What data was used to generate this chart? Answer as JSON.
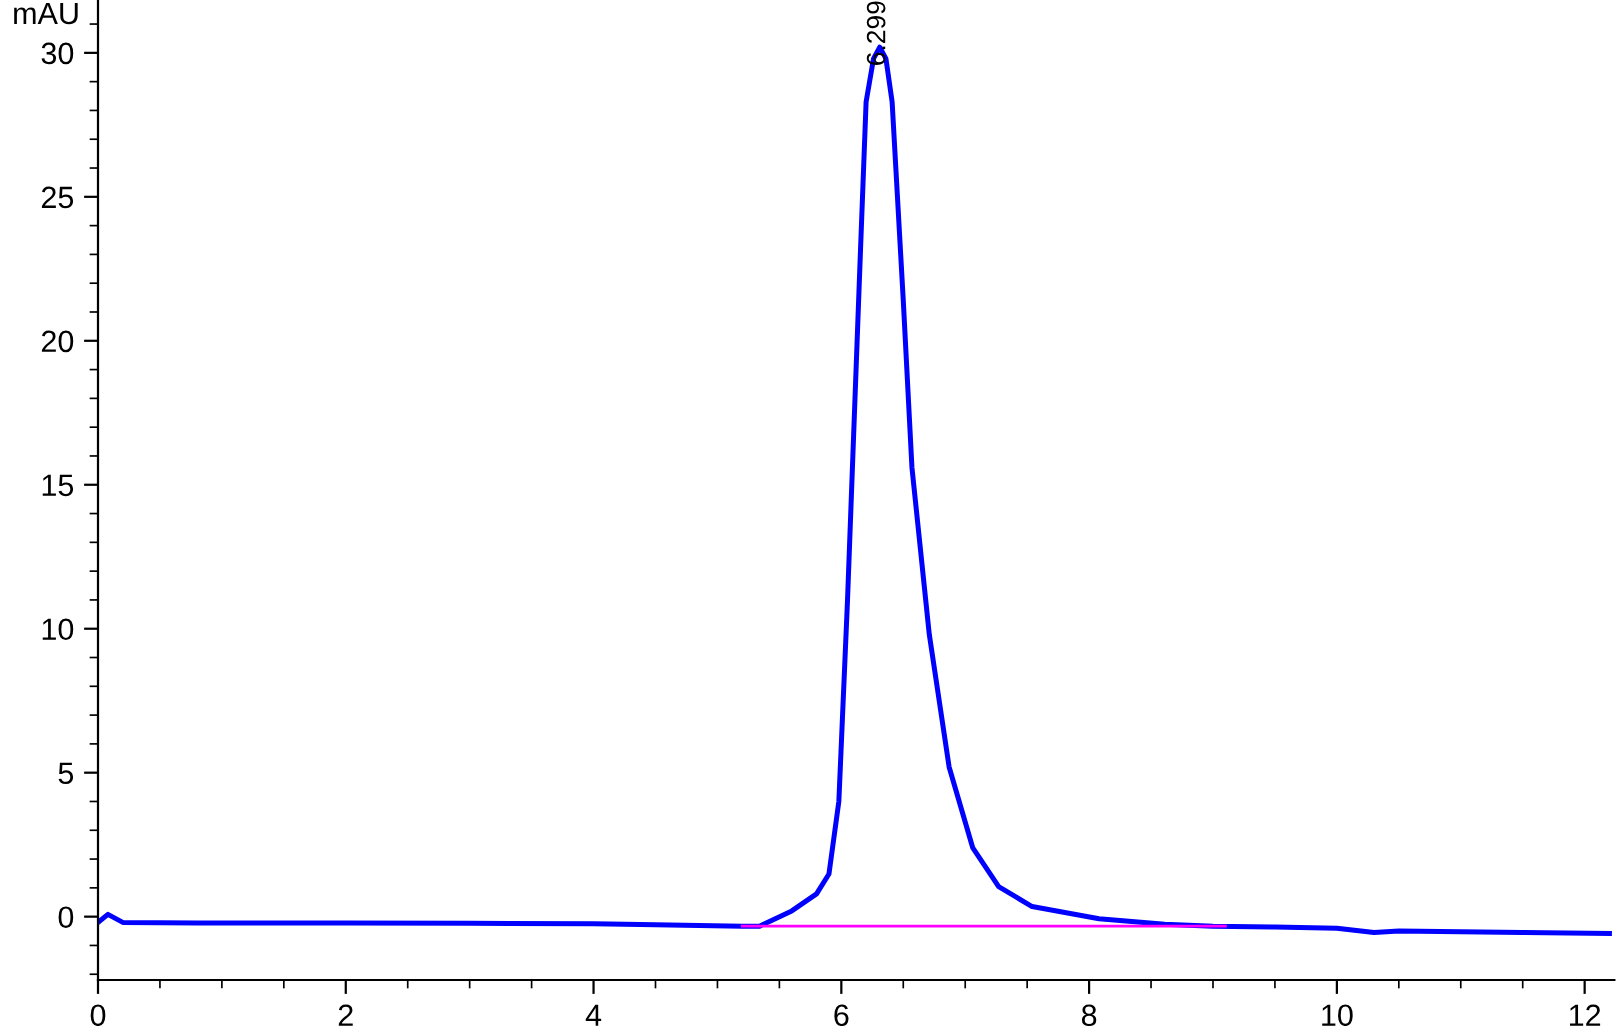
{
  "chart_data": {
    "type": "line",
    "ylabel": "mAU",
    "series": [
      {
        "color": "#0000ff",
        "x": [
          0,
          0.08,
          0.2,
          0.8,
          2,
          3,
          4,
          4.5,
          5.2,
          5.34,
          5.6,
          5.8,
          5.9,
          5.98,
          6.05,
          6.15,
          6.2,
          6.26,
          6.31,
          6.36,
          6.41,
          6.5,
          6.57,
          6.71,
          6.87,
          7.06,
          7.27,
          7.54,
          8.08,
          8.61,
          9,
          9.5,
          10,
          10.3,
          10.5,
          11,
          11.5,
          12.2
        ],
        "values": [
          -0.2,
          0.08,
          -0.2,
          -0.22,
          -0.22,
          -0.23,
          -0.25,
          -0.28,
          -0.33,
          -0.33,
          0.2,
          0.79,
          1.48,
          4.0,
          11.0,
          22.6,
          28.3,
          29.8,
          30.2,
          29.8,
          28.3,
          21.4,
          15.6,
          9.8,
          5.2,
          2.4,
          1.04,
          0.35,
          -0.07,
          -0.26,
          -0.33,
          -0.36,
          -0.4,
          -0.55,
          -0.5,
          -0.52,
          -0.55,
          -0.58
        ]
      },
      {
        "color": "#ff00ff",
        "x": [
          5.2,
          9.1
        ],
        "values": [
          -0.33,
          -0.33
        ]
      }
    ],
    "annotations": [
      {
        "text": "6.299",
        "x": 6.299,
        "y": 30.2
      }
    ],
    "xlim": [
      0,
      12.24
    ],
    "ylim": [
      -2.2,
      31.8
    ],
    "xticks": [
      0,
      2,
      4,
      6,
      8,
      10,
      12
    ],
    "yticks": [
      0,
      5,
      10,
      15,
      20,
      25,
      30
    ],
    "grid": false,
    "legend": false,
    "marker": "none",
    "line_style": "solid"
  }
}
